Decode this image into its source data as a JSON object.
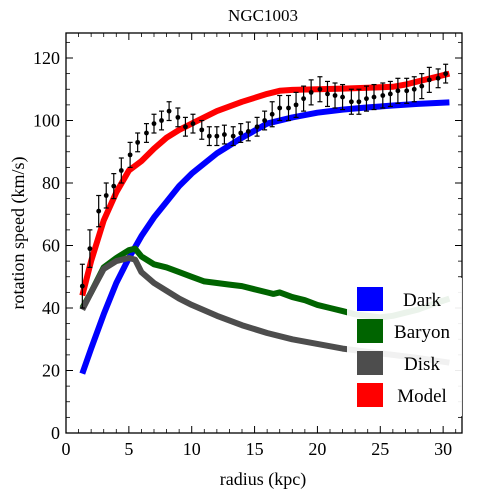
{
  "chart_data": {
    "type": "line",
    "title": "NGC1003",
    "xlabel": "radius (kpc)",
    "ylabel": "rotation speed (km/s)",
    "xlim": [
      0,
      31.5
    ],
    "ylim": [
      0,
      128
    ],
    "xticks": [
      0,
      5,
      10,
      15,
      20,
      25,
      30
    ],
    "yticks": [
      0,
      20,
      40,
      60,
      80,
      100,
      120
    ],
    "grid": false,
    "legend_position": "bottom-right",
    "series": [
      {
        "name": "Dark",
        "color": "#0000ff",
        "x": [
          1.3,
          2,
          3,
          4,
          5,
          6,
          7,
          8,
          9,
          10,
          12,
          14,
          16,
          18,
          20,
          22,
          24,
          26,
          28,
          30.5
        ],
        "y": [
          19,
          27,
          38,
          48,
          56,
          63,
          69,
          74,
          79,
          83,
          89.5,
          94.5,
          99,
          101,
          102.5,
          103.5,
          104.2,
          104.8,
          105.3,
          105.8
        ]
      },
      {
        "name": "Baryon",
        "color": "#006400",
        "x": [
          1.3,
          2,
          3,
          4,
          5,
          5.5,
          6,
          7,
          8,
          9,
          10,
          11,
          12,
          13,
          14,
          15,
          16,
          16.5,
          17,
          18,
          19,
          20,
          21,
          22,
          23,
          24,
          25,
          26,
          27,
          28,
          29,
          30.5
        ],
        "y": [
          40,
          45,
          53,
          56,
          58.5,
          59,
          56.5,
          54,
          53,
          51.5,
          50,
          48.5,
          48,
          47.5,
          47,
          46,
          45,
          44.5,
          45,
          43.5,
          42.5,
          41,
          40,
          39,
          38,
          37.5,
          37,
          37.5,
          38.5,
          39.5,
          41,
          43
        ]
      },
      {
        "name": "Disk",
        "color": "#4d4d4d",
        "x": [
          1.3,
          2,
          3,
          4,
          5,
          5.5,
          6,
          7,
          8,
          9,
          10,
          12,
          14,
          16,
          18,
          20,
          22,
          24,
          26,
          28,
          30.5
        ],
        "y": [
          39.5,
          45,
          52.5,
          55,
          56,
          55.5,
          51.5,
          48,
          45.5,
          43,
          41,
          37.5,
          34.5,
          32,
          30,
          28.5,
          27,
          26,
          25,
          24,
          22.5
        ]
      },
      {
        "name": "Model",
        "color": "#ff0000",
        "x": [
          1.3,
          2,
          3,
          4,
          5,
          6,
          7,
          8,
          9,
          10,
          12,
          14,
          16,
          17,
          18,
          20,
          22,
          24,
          26,
          27,
          28,
          29,
          30.5
        ],
        "y": [
          44,
          55,
          68,
          77,
          84,
          87,
          91,
          94.5,
          97,
          99,
          103,
          106,
          108.5,
          109.5,
          109.8,
          110,
          110.2,
          110.5,
          110.8,
          111.5,
          112.5,
          113.5,
          115
        ]
      }
    ],
    "observed": {
      "x": [
        1.3,
        1.9,
        2.6,
        3.2,
        3.8,
        4.4,
        5.1,
        5.7,
        6.4,
        7.0,
        7.6,
        8.2,
        8.9,
        9.5,
        10.1,
        10.8,
        11.4,
        12.0,
        12.6,
        13.3,
        13.9,
        14.5,
        15.2,
        15.8,
        16.4,
        17.0,
        17.7,
        18.3,
        18.9,
        19.5,
        20.2,
        20.8,
        21.4,
        22.0,
        22.7,
        23.3,
        23.9,
        24.5,
        25.2,
        25.8,
        26.4,
        27.1,
        27.7,
        28.3,
        28.9,
        29.6,
        30.2
      ],
      "y": [
        47,
        59,
        71,
        76,
        79,
        84,
        89,
        93,
        96,
        99,
        100,
        103,
        101,
        98,
        99,
        97,
        95,
        95,
        95.5,
        95,
        96,
        96.5,
        98,
        100,
        102,
        104,
        104,
        105,
        107,
        109,
        110,
        108.5,
        108,
        107.5,
        106,
        106,
        107,
        107.5,
        108,
        108.5,
        109.5,
        109.5,
        110,
        111,
        113,
        113.5,
        115
      ],
      "err": [
        7,
        6,
        5,
        4,
        4,
        4,
        4,
        3,
        3,
        3,
        3,
        3,
        3,
        3,
        3,
        3,
        3,
        3,
        3,
        3,
        3,
        3,
        3,
        3,
        4,
        4,
        4,
        4,
        4,
        4,
        4,
        4,
        4,
        4,
        4,
        4,
        4,
        4,
        4,
        4,
        4,
        4,
        4,
        4,
        4,
        3,
        3
      ]
    }
  }
}
